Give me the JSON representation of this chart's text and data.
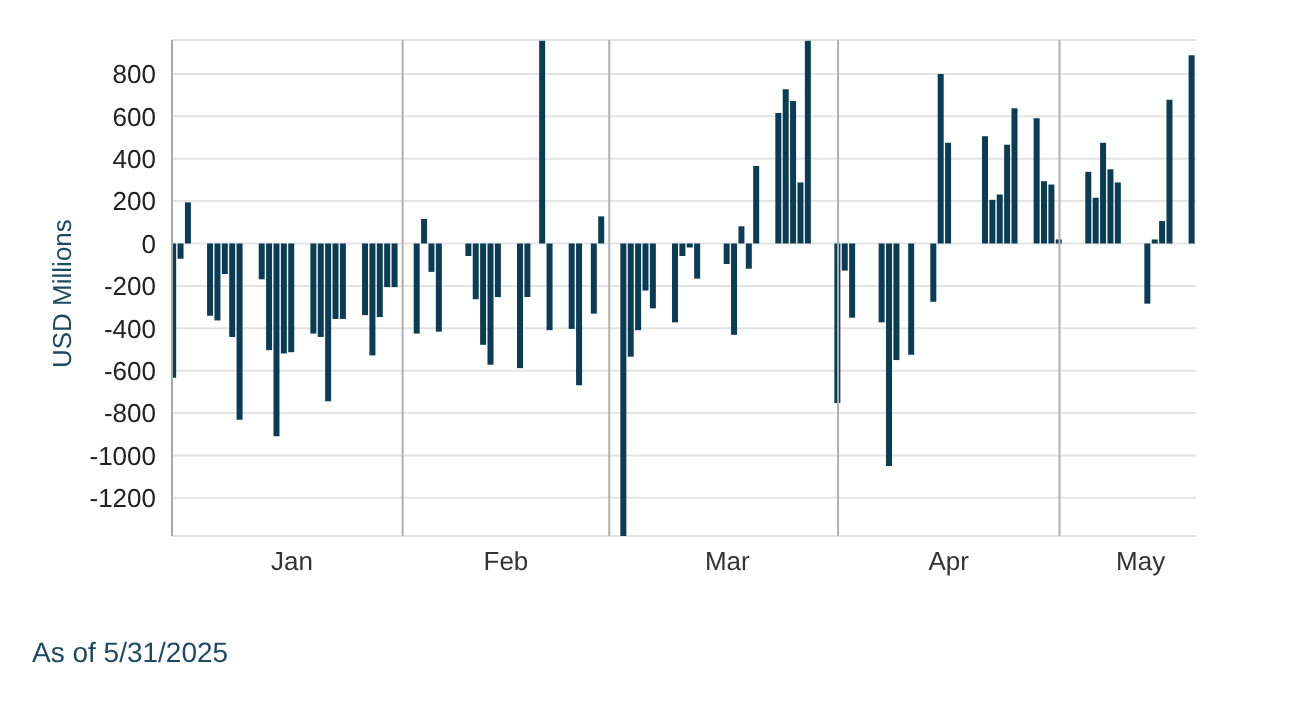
{
  "chart_data": {
    "type": "bar",
    "ylabel": "USD Millions",
    "x": [
      "2025-01-01",
      "2025-01-02",
      "2025-01-03",
      "2025-01-06",
      "2025-01-07",
      "2025-01-08",
      "2025-01-09",
      "2025-01-10",
      "2025-01-13",
      "2025-01-14",
      "2025-01-15",
      "2025-01-16",
      "2025-01-17",
      "2025-01-20",
      "2025-01-21",
      "2025-01-22",
      "2025-01-23",
      "2025-01-24",
      "2025-01-27",
      "2025-01-28",
      "2025-01-29",
      "2025-01-30",
      "2025-01-31",
      "2025-02-03",
      "2025-02-04",
      "2025-02-05",
      "2025-02-06",
      "2025-02-10",
      "2025-02-11",
      "2025-02-12",
      "2025-02-13",
      "2025-02-14",
      "2025-02-17",
      "2025-02-18",
      "2025-02-20",
      "2025-02-21",
      "2025-02-24",
      "2025-02-25",
      "2025-02-27",
      "2025-02-28",
      "2025-03-03",
      "2025-03-04",
      "2025-03-05",
      "2025-03-06",
      "2025-03-07",
      "2025-03-10",
      "2025-03-11",
      "2025-03-12",
      "2025-03-13",
      "2025-03-17",
      "2025-03-18",
      "2025-03-19",
      "2025-03-20",
      "2025-03-21",
      "2025-03-24",
      "2025-03-25",
      "2025-03-26",
      "2025-03-27",
      "2025-03-28",
      "2025-04-01",
      "2025-04-02",
      "2025-04-03",
      "2025-04-07",
      "2025-04-08",
      "2025-04-09",
      "2025-04-11",
      "2025-04-14",
      "2025-04-15",
      "2025-04-16",
      "2025-04-21",
      "2025-04-22",
      "2025-04-23",
      "2025-04-24",
      "2025-04-25",
      "2025-04-28",
      "2025-04-29",
      "2025-04-30",
      "2025-05-01",
      "2025-05-05",
      "2025-05-06",
      "2025-05-07",
      "2025-05-08",
      "2025-05-09",
      "2025-05-13",
      "2025-05-14",
      "2025-05-15",
      "2025-05-16",
      "2025-05-19"
    ],
    "values": [
      -634,
      -72,
      194,
      -341,
      -363,
      -144,
      -441,
      -831,
      -169,
      -503,
      -909,
      -519,
      -513,
      -425,
      -441,
      -744,
      -356,
      -356,
      -338,
      -528,
      -347,
      -206,
      -206,
      -425,
      116,
      -134,
      -416,
      -59,
      -263,
      -478,
      -572,
      -253,
      -588,
      -253,
      956,
      -409,
      -403,
      -669,
      -331,
      128,
      -1380,
      -534,
      -409,
      -222,
      -306,
      -372,
      -59,
      -19,
      -166,
      -97,
      -431,
      81,
      -119,
      366,
      616,
      728,
      672,
      288,
      956,
      -753,
      -128,
      -350,
      -372,
      -1050,
      -550,
      -525,
      -275,
      800,
      475,
      506,
      206,
      231,
      466,
      638,
      591,
      294,
      278,
      19,
      338,
      216,
      475,
      350,
      288,
      -284,
      19,
      106,
      678,
      888
    ],
    "color": "#0b3c55",
    "xlim": [
      "2024-12-31T18:00",
      "2025-05-19T12:00"
    ],
    "xticks": [
      {
        "value": "2025-01-17",
        "label": "Jan"
      },
      {
        "value": "2025-02-15",
        "label": "Feb"
      },
      {
        "value": "2025-03-17",
        "label": "Mar"
      },
      {
        "value": "2025-04-16",
        "label": "Apr"
      },
      {
        "value": "2025-05-12",
        "label": "May"
      }
    ],
    "ylim": [
      -1380,
      960
    ],
    "yticks": [
      -1200,
      -1000,
      -800,
      -600,
      -400,
      -200,
      0,
      200,
      400,
      600,
      800
    ],
    "grid": "y",
    "ref_lines": [
      {
        "axis": "x",
        "value": "2025-02-01",
        "color": "#b0b0b0"
      },
      {
        "axis": "x",
        "value": "2025-03-01",
        "color": "#b0b0b0"
      },
      {
        "axis": "x",
        "value": "2025-04-01",
        "color": "#b0b0b0"
      },
      {
        "axis": "x",
        "value": "2025-05-01",
        "color": "#b0b0b0"
      }
    ],
    "annotations": [
      "As of 5/31/2025"
    ]
  }
}
